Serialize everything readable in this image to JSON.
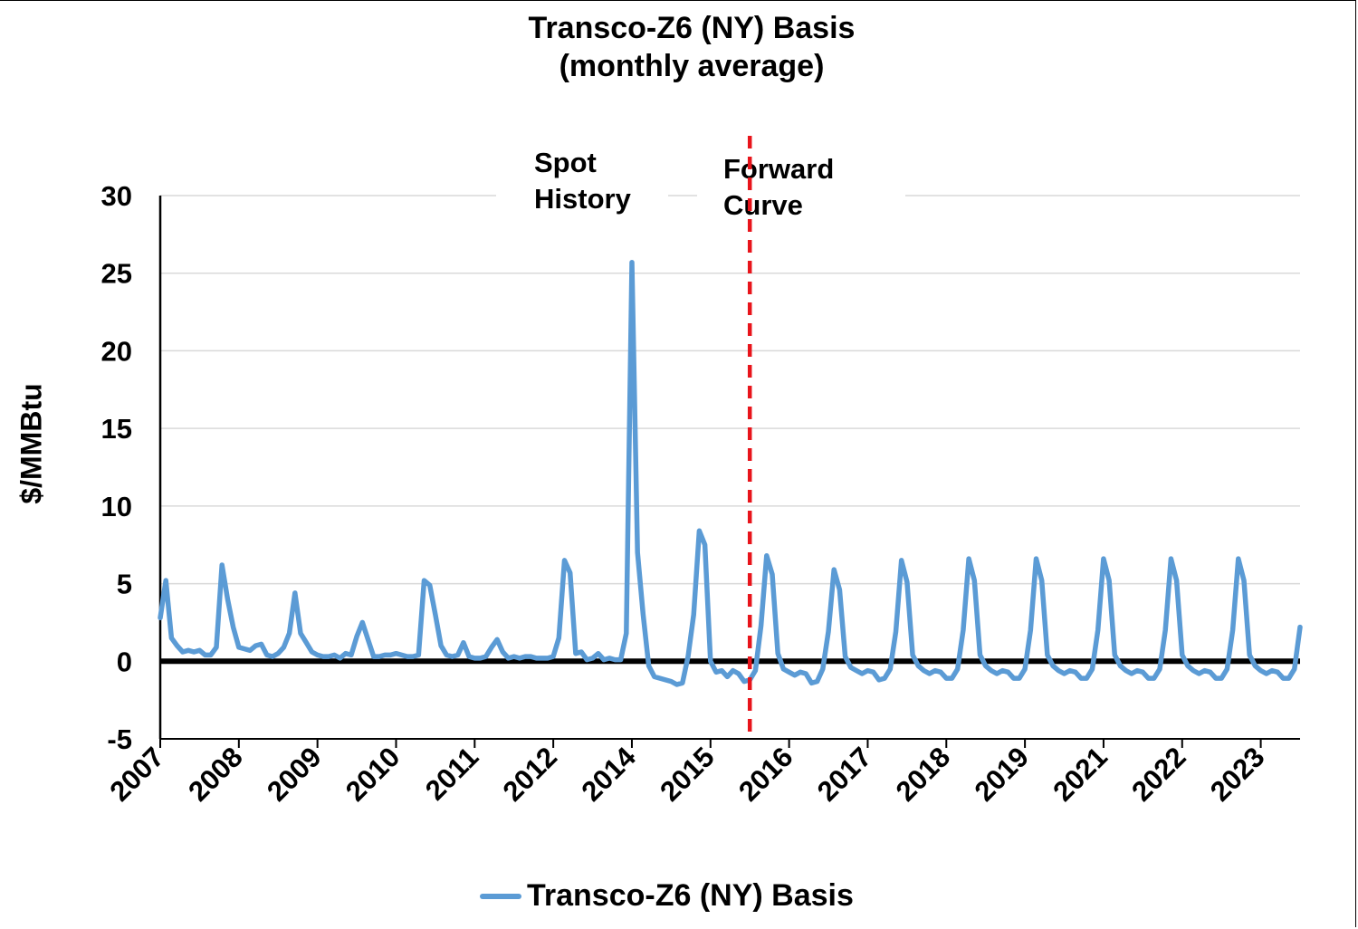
{
  "chart_data": {
    "type": "line",
    "title": "Transco-Z6 (NY) Basis",
    "subtitle": "(monthly average)",
    "ylabel": "$/MMBtu",
    "xlabel": "",
    "ylim": [
      -5,
      30
    ],
    "yticks": [
      -5,
      0,
      5,
      10,
      15,
      20,
      25,
      30
    ],
    "x_tick_labels": [
      "2007",
      "2008",
      "2009",
      "2010",
      "2011",
      "2012",
      "2014",
      "2015",
      "2016",
      "2017",
      "2018",
      "2019",
      "2021",
      "2022",
      "2023"
    ],
    "grid": "horizontal",
    "legend_position": "bottom",
    "colors": {
      "series": "#5b9bd5",
      "divider": "#e8141b",
      "zero_line": "#000000"
    },
    "annotations": [
      {
        "lines": [
          "Spot",
          "History"
        ]
      },
      {
        "lines": [
          "Forward",
          "Curve"
        ]
      }
    ],
    "divider_after_point_index": 105,
    "series": [
      {
        "name": "Transco-Z6 (NY) Basis",
        "values": [
          2.8,
          5.2,
          1.5,
          1.0,
          0.6,
          0.7,
          0.6,
          0.7,
          0.4,
          0.4,
          0.9,
          6.2,
          4.0,
          2.2,
          0.9,
          0.8,
          0.7,
          1.0,
          1.1,
          0.4,
          0.3,
          0.5,
          0.9,
          1.8,
          4.4,
          1.8,
          1.2,
          0.6,
          0.4,
          0.3,
          0.3,
          0.4,
          0.2,
          0.5,
          0.4,
          1.6,
          2.5,
          1.4,
          0.3,
          0.3,
          0.4,
          0.4,
          0.5,
          0.4,
          0.3,
          0.3,
          0.4,
          5.2,
          4.9,
          3.0,
          1.0,
          0.4,
          0.3,
          0.4,
          1.2,
          0.3,
          0.2,
          0.2,
          0.3,
          0.9,
          1.4,
          0.6,
          0.2,
          0.3,
          0.2,
          0.3,
          0.3,
          0.2,
          0.2,
          0.2,
          0.3,
          1.5,
          6.5,
          5.7,
          0.5,
          0.6,
          0.1,
          0.2,
          0.5,
          0.1,
          0.2,
          0.1,
          0.1,
          1.8,
          25.7,
          7.0,
          3.0,
          -0.3,
          -1.0,
          -1.1,
          -1.2,
          -1.3,
          -1.5,
          -1.4,
          0.3,
          3.0,
          8.4,
          7.5,
          0.0,
          -0.7,
          -0.6,
          -1.0,
          -0.6,
          -0.8,
          -1.3,
          -1.2,
          -0.6,
          2.3,
          6.8,
          5.6,
          0.5,
          -0.5,
          -0.7,
          -0.9,
          -0.7,
          -0.8,
          -1.4,
          -1.3,
          -0.5,
          1.9,
          5.9,
          4.6,
          0.3,
          -0.4,
          -0.6,
          -0.8,
          -0.6,
          -0.7,
          -1.2,
          -1.1,
          -0.5,
          1.9,
          6.5,
          5.1,
          0.4,
          -0.3,
          -0.6,
          -0.8,
          -0.6,
          -0.7,
          -1.1,
          -1.1,
          -0.5,
          2.0,
          6.6,
          5.2,
          0.4,
          -0.3,
          -0.6,
          -0.8,
          -0.6,
          -0.7,
          -1.1,
          -1.1,
          -0.5,
          2.0,
          6.6,
          5.2,
          0.4,
          -0.3,
          -0.6,
          -0.8,
          -0.6,
          -0.7,
          -1.1,
          -1.1,
          -0.5,
          2.0,
          6.6,
          5.2,
          0.4,
          -0.3,
          -0.6,
          -0.8,
          -0.6,
          -0.7,
          -1.1,
          -1.1,
          -0.5,
          2.0,
          6.6,
          5.2,
          0.4,
          -0.3,
          -0.6,
          -0.8,
          -0.6,
          -0.7,
          -1.1,
          -1.1,
          -0.5,
          2.0,
          6.6,
          5.2,
          0.4,
          -0.3,
          -0.6,
          -0.8,
          -0.6,
          -0.7,
          -1.1,
          -1.1,
          -0.5,
          2.2
        ]
      }
    ]
  }
}
